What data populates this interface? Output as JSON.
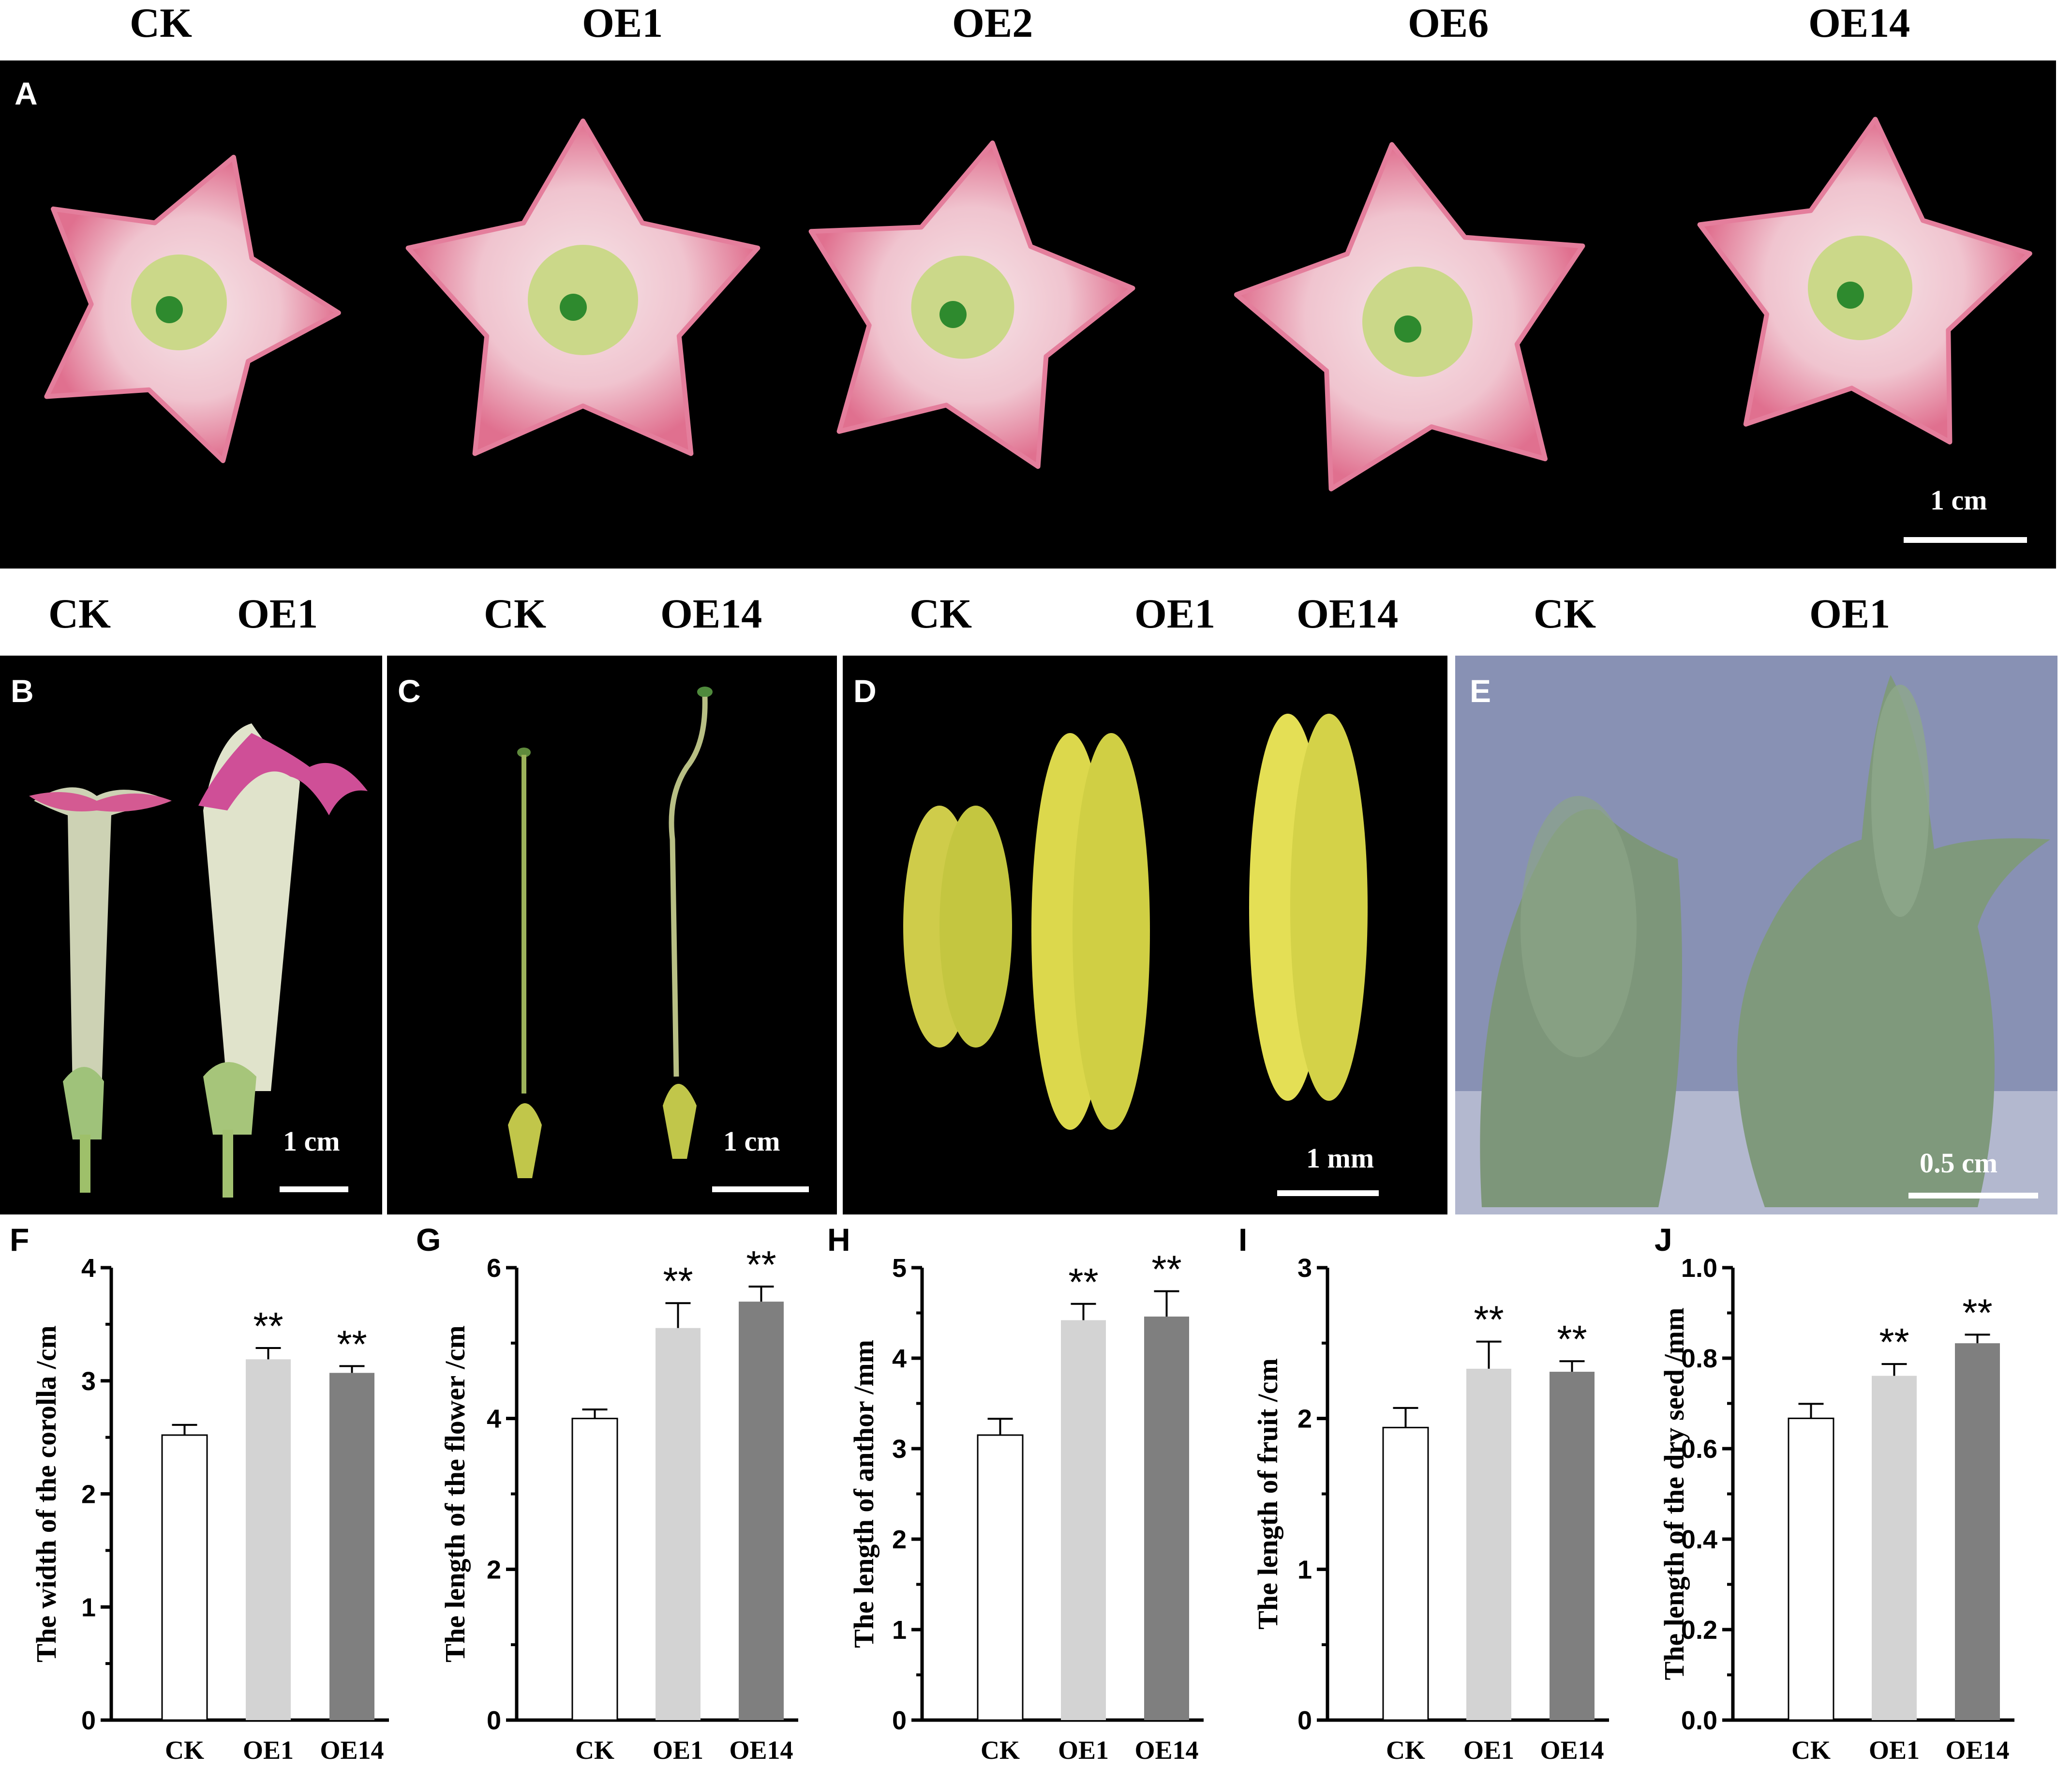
{
  "colors": {
    "photo_bg": "#000000",
    "petal_pink": "#e47e9c",
    "petal_light": "#f2cfd6",
    "flower_center": "#cbd889",
    "anther_yellow": "#d6d24a",
    "calyx_green": "#7f9b7c",
    "panel_e_bg": "#8891b4",
    "bar_ck": "#ffffff",
    "bar_oe1": "#d3d3d3",
    "bar_oe14": "#7f7f7f"
  },
  "panel_a": {
    "letter": "A",
    "labels": [
      "CK",
      "OE1",
      "OE2",
      "OE6",
      "OE14"
    ],
    "scale": "1 cm"
  },
  "panel_b": {
    "letter": "B",
    "labels": [
      "CK",
      "OE1"
    ],
    "scale": "1 cm"
  },
  "panel_c": {
    "letter": "C",
    "labels": [
      "CK",
      "OE14"
    ],
    "scale": "1 cm"
  },
  "panel_d": {
    "letter": "D",
    "labels": [
      "CK",
      "OE1",
      "OE14"
    ],
    "scale": "1 mm"
  },
  "panel_e": {
    "letter": "E",
    "labels": [
      "CK",
      "OE1"
    ],
    "scale": "0.5 cm"
  },
  "chart_data": [
    {
      "type": "bar",
      "letter": "F",
      "categories": [
        "CK",
        "OE1",
        "OE14"
      ],
      "values": [
        2.52,
        3.19,
        3.07
      ],
      "errors": [
        0.09,
        0.1,
        0.06
      ],
      "significance": [
        "",
        "**",
        "**"
      ],
      "ylabel": "The width of the corolla /cm",
      "ylim": [
        0,
        4
      ],
      "yticks": [
        "0",
        "1",
        "2",
        "3",
        "4"
      ]
    },
    {
      "type": "bar",
      "letter": "G",
      "categories": [
        "CK",
        "OE1",
        "OE14"
      ],
      "values": [
        4.0,
        5.2,
        5.55
      ],
      "errors": [
        0.12,
        0.33,
        0.2
      ],
      "significance": [
        "",
        "**",
        "**"
      ],
      "ylabel": "The length of the flower /cm",
      "ylim": [
        0,
        6
      ],
      "yticks": [
        "0",
        "2",
        "4",
        "6"
      ]
    },
    {
      "type": "bar",
      "letter": "H",
      "categories": [
        "CK",
        "OE1",
        "OE14"
      ],
      "values": [
        3.15,
        4.42,
        4.46
      ],
      "errors": [
        0.18,
        0.18,
        0.28
      ],
      "significance": [
        "",
        "**",
        "**"
      ],
      "ylabel": "The length of anthor /mm",
      "ylim": [
        0,
        5
      ],
      "yticks": [
        "0",
        "1",
        "2",
        "3",
        "4",
        "5"
      ]
    },
    {
      "type": "bar",
      "letter": "I",
      "categories": [
        "CK",
        "OE1",
        "OE14"
      ],
      "values": [
        1.94,
        2.33,
        2.31
      ],
      "errors": [
        0.13,
        0.18,
        0.07
      ],
      "significance": [
        "",
        "**",
        "**"
      ],
      "ylabel": "The length of fruit /cm",
      "ylim": [
        0,
        3
      ],
      "yticks": [
        "0",
        "1",
        "2",
        "3"
      ]
    },
    {
      "type": "bar",
      "letter": "J",
      "categories": [
        "CK",
        "OE1",
        "OE14"
      ],
      "values": [
        0.667,
        0.761,
        0.833
      ],
      "errors": [
        0.032,
        0.026,
        0.019
      ],
      "significance": [
        "",
        "**",
        "**"
      ],
      "ylabel": "The length of the dry seed /mm",
      "ylim": [
        0,
        1.0
      ],
      "yticks": [
        "0.0",
        "0.2",
        "0.4",
        "0.6",
        "0.8",
        "1.0"
      ]
    }
  ]
}
